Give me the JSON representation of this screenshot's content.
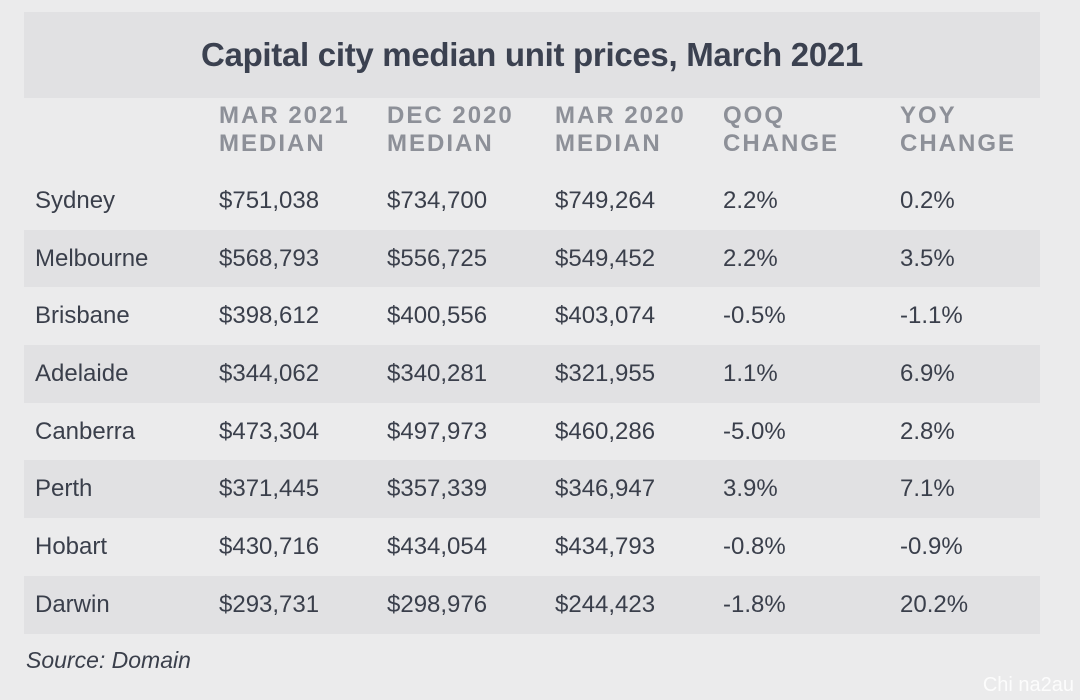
{
  "title": "Capital city median unit prices, March 2021",
  "headers": [
    {
      "line1": "",
      "line2": ""
    },
    {
      "line1": "MAR 2021",
      "line2": "MEDIAN"
    },
    {
      "line1": "DEC 2020",
      "line2": "MEDIAN"
    },
    {
      "line1": "MAR 2020",
      "line2": "MEDIAN"
    },
    {
      "line1": "QOQ",
      "line2": "CHANGE"
    },
    {
      "line1": "YOY",
      "line2": "CHANGE"
    }
  ],
  "rows": [
    [
      "Sydney",
      "$751,038",
      "$734,700",
      "$749,264",
      "2.2%",
      "0.2%"
    ],
    [
      "Melbourne",
      "$568,793",
      "$556,725",
      "$549,452",
      "2.2%",
      "3.5%"
    ],
    [
      "Brisbane",
      "$398,612",
      "$400,556",
      "$403,074",
      "-0.5%",
      "-1.1%"
    ],
    [
      "Adelaide",
      "$344,062",
      "$340,281",
      "$321,955",
      "1.1%",
      "6.9%"
    ],
    [
      "Canberra",
      "$473,304",
      "$497,973",
      "$460,286",
      "-5.0%",
      "2.8%"
    ],
    [
      "Perth",
      "$371,445",
      "$357,339",
      "$346,947",
      "3.9%",
      "7.1%"
    ],
    [
      "Hobart",
      "$430,716",
      "$434,054",
      "$434,793",
      "-0.8%",
      "-0.9%"
    ],
    [
      "Darwin",
      "$293,731",
      "$298,976",
      "$244,423",
      "-1.8%",
      "20.2%"
    ]
  ],
  "source": "Source: Domain",
  "watermark": "Chi na2au"
}
